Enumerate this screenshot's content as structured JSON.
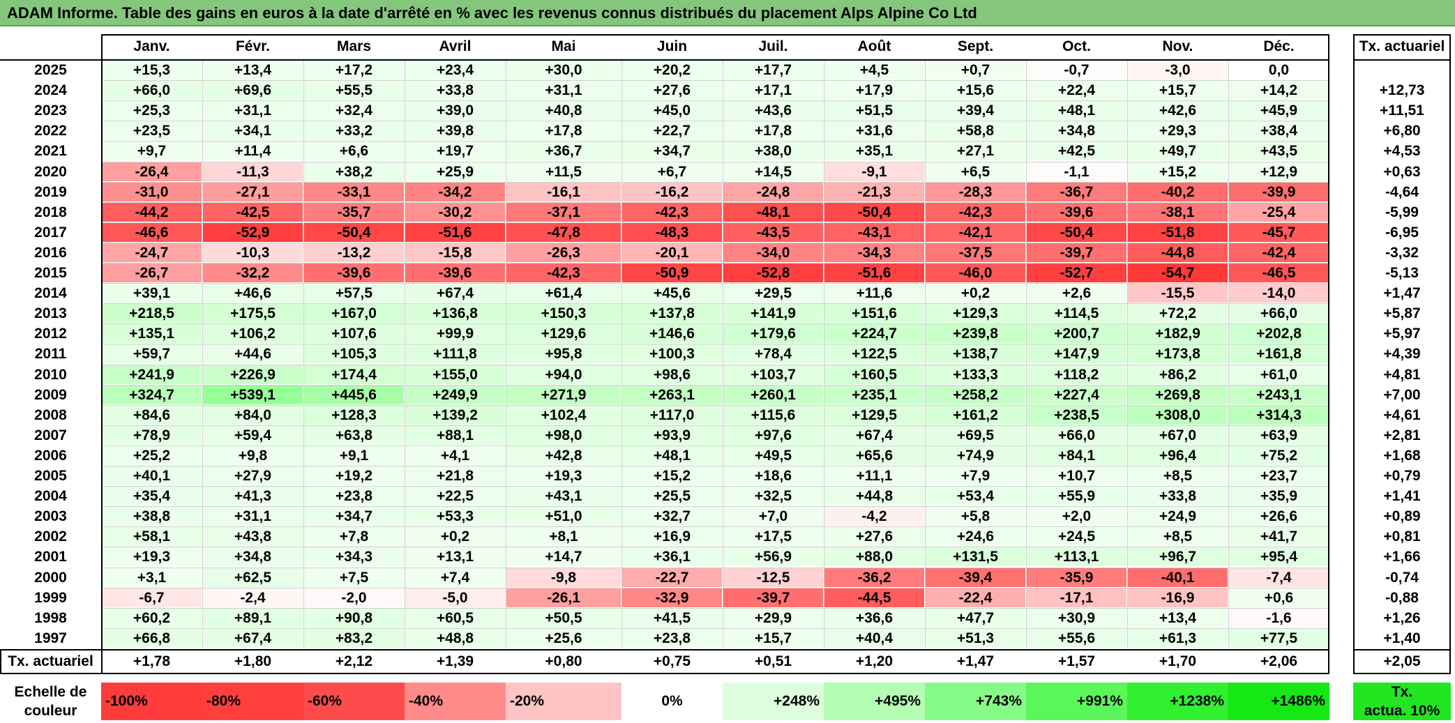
{
  "title": "ADAM Informe. Table des gains en euros à la date d'arrêté en % avec les revenus connus distribués du placement Alps Alpine Co Ltd",
  "months": [
    "Janv.",
    "Févr.",
    "Mars",
    "Avril",
    "Mai",
    "Juin",
    "Juil.",
    "Août",
    "Sept.",
    "Oct.",
    "Nov.",
    "Déc."
  ],
  "rate_header": "Tx. actuariel",
  "rows": [
    {
      "year": "2025",
      "values": [
        "+15,3",
        "+13,4",
        "+17,2",
        "+23,4",
        "+30,0",
        "+20,2",
        "+17,7",
        "+4,5",
        "+0,7",
        "-0,7",
        "-3,0",
        "0,0"
      ],
      "rate": ""
    },
    {
      "year": "2024",
      "values": [
        "+66,0",
        "+69,6",
        "+55,5",
        "+33,8",
        "+31,1",
        "+27,6",
        "+17,1",
        "+17,9",
        "+15,6",
        "+22,4",
        "+15,7",
        "+14,2"
      ],
      "rate": "+12,73"
    },
    {
      "year": "2023",
      "values": [
        "+25,3",
        "+31,1",
        "+32,4",
        "+39,0",
        "+40,8",
        "+45,0",
        "+43,6",
        "+51,5",
        "+39,4",
        "+48,1",
        "+42,6",
        "+45,9"
      ],
      "rate": "+11,51"
    },
    {
      "year": "2022",
      "values": [
        "+23,5",
        "+34,1",
        "+33,2",
        "+39,8",
        "+17,8",
        "+22,7",
        "+17,8",
        "+31,6",
        "+58,8",
        "+34,8",
        "+29,3",
        "+38,4"
      ],
      "rate": "+6,80"
    },
    {
      "year": "2021",
      "values": [
        "+9,7",
        "+11,4",
        "+6,6",
        "+19,7",
        "+36,7",
        "+34,7",
        "+38,0",
        "+35,1",
        "+27,1",
        "+42,5",
        "+49,7",
        "+43,5"
      ],
      "rate": "+4,53"
    },
    {
      "year": "2020",
      "values": [
        "-26,4",
        "-11,3",
        "+38,2",
        "+25,9",
        "+11,5",
        "+6,7",
        "+14,5",
        "-9,1",
        "+6,5",
        "-1,1",
        "+15,2",
        "+12,9"
      ],
      "rate": "+0,63"
    },
    {
      "year": "2019",
      "values": [
        "-31,0",
        "-27,1",
        "-33,1",
        "-34,2",
        "-16,1",
        "-16,2",
        "-24,8",
        "-21,3",
        "-28,3",
        "-36,7",
        "-40,2",
        "-39,9"
      ],
      "rate": "-4,64"
    },
    {
      "year": "2018",
      "values": [
        "-44,2",
        "-42,5",
        "-35,7",
        "-30,2",
        "-37,1",
        "-42,3",
        "-48,1",
        "-50,4",
        "-42,3",
        "-39,6",
        "-38,1",
        "-25,4"
      ],
      "rate": "-5,99"
    },
    {
      "year": "2017",
      "values": [
        "-46,6",
        "-52,9",
        "-50,4",
        "-51,6",
        "-47,8",
        "-48,3",
        "-43,5",
        "-43,1",
        "-42,1",
        "-50,4",
        "-51,8",
        "-45,7"
      ],
      "rate": "-6,95"
    },
    {
      "year": "2016",
      "values": [
        "-24,7",
        "-10,3",
        "-13,2",
        "-15,8",
        "-26,3",
        "-20,1",
        "-34,0",
        "-34,3",
        "-37,5",
        "-39,7",
        "-44,8",
        "-42,4"
      ],
      "rate": "-3,32"
    },
    {
      "year": "2015",
      "values": [
        "-26,7",
        "-32,2",
        "-39,6",
        "-39,6",
        "-42,3",
        "-50,9",
        "-52,8",
        "-51,6",
        "-46,0",
        "-52,7",
        "-54,7",
        "-46,5"
      ],
      "rate": "-5,13"
    },
    {
      "year": "2014",
      "values": [
        "+39,1",
        "+46,6",
        "+57,5",
        "+67,4",
        "+61,4",
        "+45,6",
        "+29,5",
        "+11,6",
        "+0,2",
        "+2,6",
        "-15,5",
        "-14,0"
      ],
      "rate": "+1,47"
    },
    {
      "year": "2013",
      "values": [
        "+218,5",
        "+175,5",
        "+167,0",
        "+136,8",
        "+150,3",
        "+137,8",
        "+141,9",
        "+151,6",
        "+129,3",
        "+114,5",
        "+72,2",
        "+66,0"
      ],
      "rate": "+5,87"
    },
    {
      "year": "2012",
      "values": [
        "+135,1",
        "+106,2",
        "+107,6",
        "+99,9",
        "+129,6",
        "+146,6",
        "+179,6",
        "+224,7",
        "+239,8",
        "+200,7",
        "+182,9",
        "+202,8"
      ],
      "rate": "+5,97"
    },
    {
      "year": "2011",
      "values": [
        "+59,7",
        "+44,6",
        "+105,3",
        "+111,8",
        "+95,8",
        "+100,3",
        "+78,4",
        "+122,5",
        "+138,7",
        "+147,9",
        "+173,8",
        "+161,8"
      ],
      "rate": "+4,39"
    },
    {
      "year": "2010",
      "values": [
        "+241,9",
        "+226,9",
        "+174,4",
        "+155,0",
        "+94,0",
        "+98,6",
        "+103,7",
        "+160,5",
        "+133,3",
        "+118,2",
        "+86,2",
        "+61,0"
      ],
      "rate": "+4,81"
    },
    {
      "year": "2009",
      "values": [
        "+324,7",
        "+539,1",
        "+445,6",
        "+249,9",
        "+271,9",
        "+263,1",
        "+260,1",
        "+235,1",
        "+258,2",
        "+227,4",
        "+269,8",
        "+243,1"
      ],
      "rate": "+7,00"
    },
    {
      "year": "2008",
      "values": [
        "+84,6",
        "+84,0",
        "+128,3",
        "+139,2",
        "+102,4",
        "+117,0",
        "+115,6",
        "+129,5",
        "+161,2",
        "+238,5",
        "+308,0",
        "+314,3"
      ],
      "rate": "+4,61"
    },
    {
      "year": "2007",
      "values": [
        "+78,9",
        "+59,4",
        "+63,8",
        "+88,1",
        "+98,0",
        "+93,9",
        "+97,6",
        "+67,4",
        "+69,5",
        "+66,0",
        "+67,0",
        "+63,9"
      ],
      "rate": "+2,81"
    },
    {
      "year": "2006",
      "values": [
        "+25,2",
        "+9,8",
        "+9,1",
        "+4,1",
        "+42,8",
        "+48,1",
        "+49,5",
        "+65,6",
        "+74,9",
        "+84,1",
        "+96,4",
        "+75,2"
      ],
      "rate": "+1,68"
    },
    {
      "year": "2005",
      "values": [
        "+40,1",
        "+27,9",
        "+19,2",
        "+21,8",
        "+19,3",
        "+15,2",
        "+18,6",
        "+11,1",
        "+7,9",
        "+10,7",
        "+8,5",
        "+23,7"
      ],
      "rate": "+0,79"
    },
    {
      "year": "2004",
      "values": [
        "+35,4",
        "+41,3",
        "+23,8",
        "+22,5",
        "+43,1",
        "+25,5",
        "+32,5",
        "+44,8",
        "+53,4",
        "+55,9",
        "+33,8",
        "+35,9"
      ],
      "rate": "+1,41"
    },
    {
      "year": "2003",
      "values": [
        "+38,8",
        "+31,1",
        "+34,7",
        "+53,3",
        "+51,0",
        "+32,7",
        "+7,0",
        "-4,2",
        "+5,8",
        "+2,0",
        "+24,9",
        "+26,6"
      ],
      "rate": "+0,89"
    },
    {
      "year": "2002",
      "values": [
        "+58,1",
        "+43,8",
        "+7,8",
        "+0,2",
        "+8,1",
        "+16,9",
        "+17,5",
        "+27,6",
        "+24,6",
        "+24,5",
        "+8,5",
        "+41,7"
      ],
      "rate": "+0,81"
    },
    {
      "year": "2001",
      "values": [
        "+19,3",
        "+34,8",
        "+34,3",
        "+13,1",
        "+14,7",
        "+36,1",
        "+56,9",
        "+88,0",
        "+131,5",
        "+113,1",
        "+96,7",
        "+95,4"
      ],
      "rate": "+1,66"
    },
    {
      "year": "2000",
      "values": [
        "+3,1",
        "+62,5",
        "+7,5",
        "+7,4",
        "-9,8",
        "-22,7",
        "-12,5",
        "-36,2",
        "-39,4",
        "-35,9",
        "-40,1",
        "-7,4"
      ],
      "rate": "-0,74"
    },
    {
      "year": "1999",
      "values": [
        "-6,7",
        "-2,4",
        "-2,0",
        "-5,0",
        "-26,1",
        "-32,9",
        "-39,7",
        "-44,5",
        "-22,4",
        "-17,1",
        "-16,9",
        "+0,6"
      ],
      "rate": "-0,88"
    },
    {
      "year": "1998",
      "values": [
        "+60,2",
        "+89,1",
        "+90,8",
        "+60,5",
        "+50,5",
        "+41,5",
        "+29,9",
        "+36,6",
        "+47,7",
        "+30,9",
        "+13,4",
        "-1,6"
      ],
      "rate": "+1,26"
    },
    {
      "year": "1997",
      "values": [
        "+66,8",
        "+67,4",
        "+83,2",
        "+48,8",
        "+25,6",
        "+23,8",
        "+15,7",
        "+40,4",
        "+51,3",
        "+55,6",
        "+61,3",
        "+77,5"
      ],
      "rate": "+1,40"
    }
  ],
  "footer": {
    "label": "Tx. actuariel",
    "values": [
      "+1,78",
      "+1,80",
      "+2,12",
      "+1,39",
      "+0,80",
      "+0,75",
      "+0,51",
      "+1,20",
      "+1,47",
      "+1,57",
      "+1,70",
      "+2,06"
    ],
    "rate": "+2,05"
  },
  "legend": {
    "label_line1": "Echelle de",
    "label_line2": "couleur",
    "stops": [
      "-100%",
      "-80%",
      "-60%",
      "-40%",
      "-20%",
      "0%",
      "+248%",
      "+495%",
      "+743%",
      "+991%",
      "+1238%",
      "+1486%"
    ],
    "stop_colors": [
      "#ff3b3b",
      "#ff3e3e",
      "#ff4b4b",
      "#ff8a8a",
      "#ffc4c4",
      "#ffffff",
      "#dcfedc",
      "#b4fdb4",
      "#86fa86",
      "#5af65a",
      "#30f030",
      "#15e815"
    ],
    "rate_line1": "Tx.",
    "rate_line2": "actua. 10%",
    "rate_color": "#21e621"
  }
}
